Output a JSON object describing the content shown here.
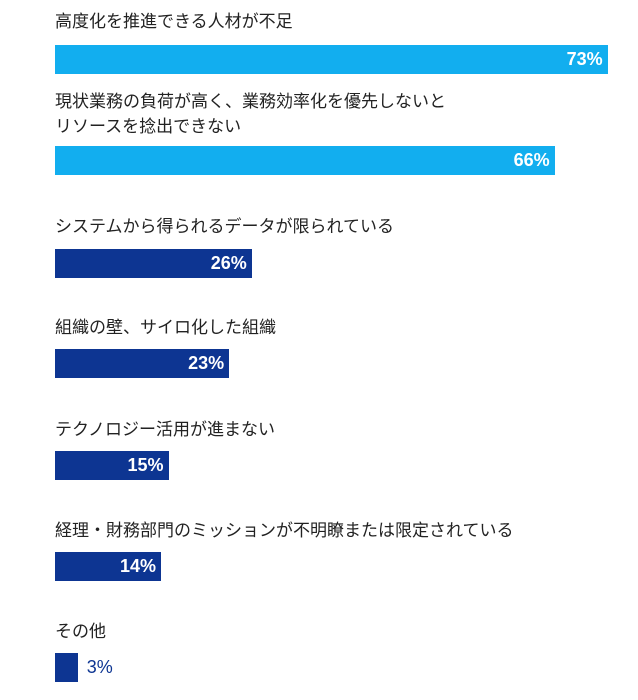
{
  "chart_data": {
    "type": "bar",
    "orientation": "horizontal",
    "categories": [
      "高度化を推進できる人材が不足",
      "現状業務の負荷が高く、業務効率化を優先しないと\nリソースを捻出できない",
      "システムから得られるデータが限られている",
      "組織の壁、サイロ化した組織",
      "テクノロジー活用が進まない",
      "経理・財務部門のミッションが不明瞭または限定されている",
      "その他"
    ],
    "values": [
      73,
      66,
      26,
      23,
      15,
      14,
      3
    ],
    "value_labels": [
      "73%",
      "66%",
      "26%",
      "23%",
      "15%",
      "14%",
      "3%"
    ],
    "unit": "%",
    "colors": [
      "#12aeef",
      "#12aeef",
      "#0d3592",
      "#0d3592",
      "#0d3592",
      "#0d3592",
      "#0d3592"
    ],
    "grid": false,
    "legend": "none"
  }
}
